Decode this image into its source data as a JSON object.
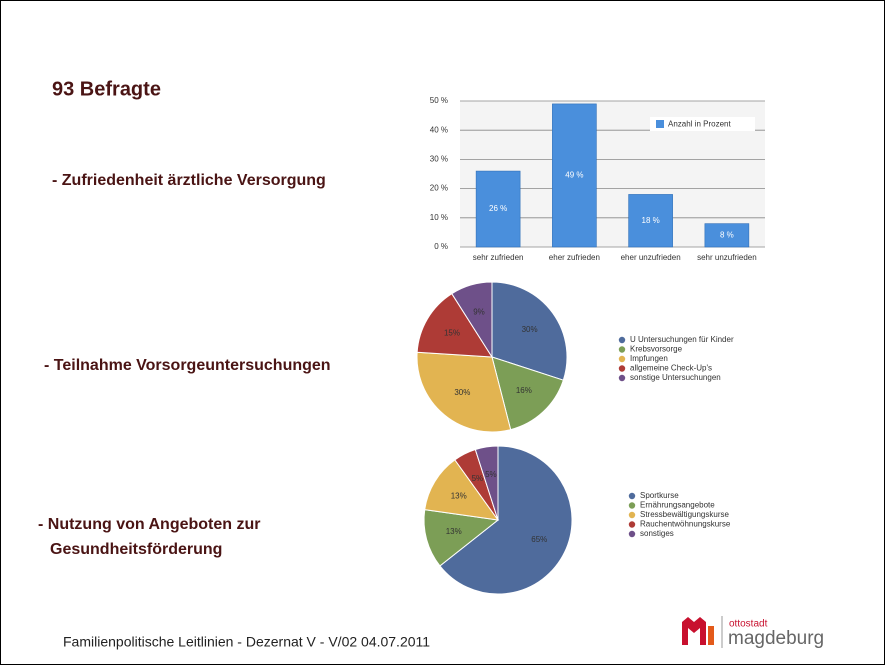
{
  "slide": {
    "title": "93 Befragte",
    "section_labels": [
      "- Zufriedenheit ärztliche Versorgung",
      "- Teilnahme Vorsorgeuntersuchungen",
      "- Nutzung von Angeboten zur",
      "Gesundheitsförderung"
    ],
    "footer": "Familienpolitische Leitlinien - Dezernat V - V/02 04.07.2011",
    "logo": {
      "small": "ottostadt",
      "large": "magdeburg"
    }
  },
  "chart_data": [
    {
      "type": "bar",
      "categories": [
        "sehr zufrieden",
        "eher zufrieden",
        "eher unzufrieden",
        "sehr unzufrieden"
      ],
      "series": [
        {
          "name": "Anzahl in Prozent",
          "color": "#4a8fdc",
          "values": [
            26,
            49,
            18,
            8
          ],
          "value_labels": [
            "26 %",
            "49 %",
            "18 %",
            "8 %"
          ]
        }
      ],
      "ylim": [
        0,
        50
      ],
      "yticks": [
        {
          "value": 0,
          "label": "0 %"
        },
        {
          "value": 10,
          "label": "10 %"
        },
        {
          "value": 20,
          "label": "20 %"
        },
        {
          "value": 30,
          "label": "30 %"
        },
        {
          "value": 40,
          "label": "40 %"
        },
        {
          "value": 50,
          "label": "50 %"
        }
      ],
      "grid": true,
      "legend": "upper right"
    },
    {
      "type": "pie",
      "categories": [
        "U Untersuchungen für Kinder",
        "Krebsvorsorge",
        "Impfungen",
        "allgemeine Check-Up's",
        "sonstige Untersuchungen"
      ],
      "values": [
        30,
        16,
        30,
        15,
        9
      ],
      "value_labels": [
        "30%",
        "16%",
        "30%",
        "15%",
        "9%"
      ],
      "colors": [
        "#4f6b9c",
        "#7c9e56",
        "#e2b451",
        "#ae3b36",
        "#6e5089"
      ],
      "legend": "right"
    },
    {
      "type": "pie",
      "categories": [
        "Sportkurse",
        "Ernährungsangebote",
        "Stressbewältigungskurse",
        "Rauchentwöhnungskurse",
        "sonstiges"
      ],
      "values": [
        65,
        13,
        13,
        5,
        5
      ],
      "value_labels": [
        "65%",
        "13%",
        "13%",
        "5%",
        "5%"
      ],
      "colors": [
        "#4f6b9c",
        "#7c9e56",
        "#e2b451",
        "#ae3b36",
        "#6e5089"
      ],
      "legend": "right"
    }
  ]
}
